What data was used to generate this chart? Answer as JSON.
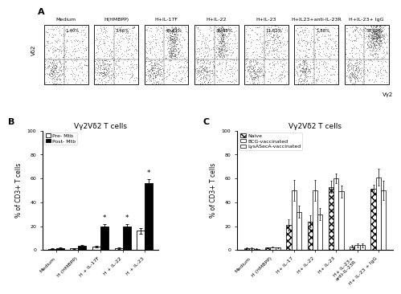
{
  "panel_A_labels": [
    "Medium",
    "H(HMBPP)",
    "H+IL-17F",
    "H+IL-22",
    "H+IL-23",
    "H+IL23+anti-IL-23R",
    "H+IL-23+ IgG"
  ],
  "panel_A_percentages": [
    "1.40%",
    "3.46%",
    "40.43%",
    "36.98%",
    "11.62%",
    "1.88%",
    "59.82%"
  ],
  "panel_A_pct_vals": [
    1.4,
    3.46,
    40.43,
    36.98,
    11.62,
    1.88,
    59.82
  ],
  "panel_B_title": "Vγ2Vδ2 T cells",
  "panel_B_categories": [
    "Medium",
    "H (HMBPP)",
    "H + IL-17F",
    "H + IL-22",
    "H + IL-23"
  ],
  "panel_B_pre_mtb": [
    1.0,
    1.2,
    3.0,
    1.5,
    16.0
  ],
  "panel_B_post_mtb": [
    1.5,
    3.5,
    19.5,
    19.5,
    56.0
  ],
  "panel_B_pre_err": [
    0.4,
    0.4,
    0.8,
    0.5,
    2.5
  ],
  "panel_B_post_err": [
    0.4,
    0.8,
    2.0,
    2.0,
    3.5
  ],
  "panel_B_ylabel": "% of CD3+ T cells",
  "panel_B_ylim": [
    0,
    100
  ],
  "panel_B_yticks": [
    0,
    20,
    40,
    60,
    80,
    100
  ],
  "panel_B_star_indices": [
    2,
    3,
    4
  ],
  "panel_C_title": "Vγ2Vδ2 T cells",
  "panel_C_categories": [
    "Medium",
    "H (HMBPP)",
    "H+ IL-17",
    "H+ IL-22",
    "H+ IL-23",
    "H+ IL-23+\nanti-IL-23R",
    "H+ IL-23 + IgG"
  ],
  "panel_C_naive": [
    1.5,
    2.0,
    21.0,
    24.0,
    53.0,
    3.0,
    51.0
  ],
  "panel_C_bcg": [
    1.5,
    2.5,
    50.0,
    50.0,
    60.0,
    4.0,
    61.0
  ],
  "panel_C_lysa": [
    1.0,
    2.0,
    32.0,
    30.0,
    49.0,
    4.0,
    50.0
  ],
  "panel_C_naive_err": [
    0.5,
    0.5,
    5.0,
    5.0,
    5.0,
    1.0,
    4.0
  ],
  "panel_C_bcg_err": [
    0.5,
    0.5,
    9.0,
    9.0,
    4.0,
    1.5,
    7.0
  ],
  "panel_C_lysa_err": [
    0.5,
    0.5,
    5.0,
    5.0,
    5.0,
    1.5,
    8.0
  ],
  "panel_C_ylabel": "% of CD3+ T cells",
  "panel_C_ylim": [
    0,
    100
  ],
  "panel_C_yticks": [
    0,
    20,
    40,
    60,
    80,
    100
  ],
  "font_size_title": 6.5,
  "font_size_tick": 4.5,
  "font_size_label": 5.5,
  "font_size_legend": 4.5,
  "font_size_panel": 8,
  "font_size_pct": 4.0,
  "font_size_condlabel": 4.5
}
